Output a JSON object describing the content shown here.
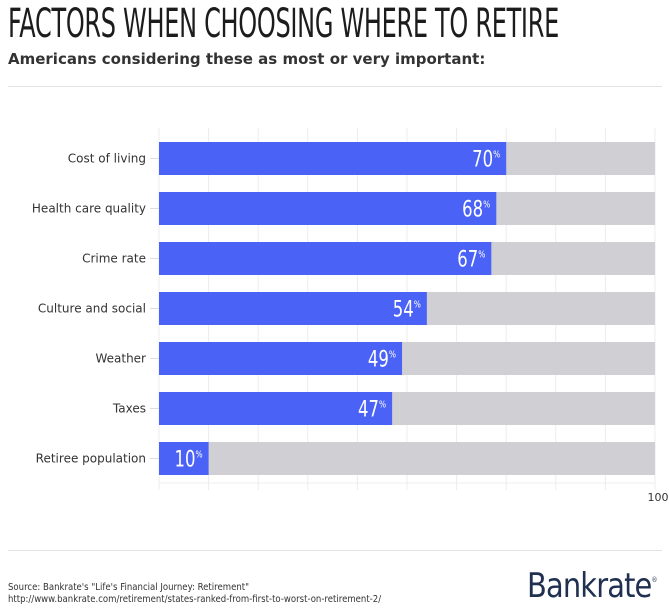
{
  "chart_data": {
    "type": "bar",
    "orientation": "horizontal",
    "stacked_background": true,
    "title": "FACTORS WHEN CHOOSING WHERE TO RETIRE",
    "subtitle": "Americans considering these as most or very important:",
    "categories": [
      "Cost of living",
      "Health care quality",
      "Crime rate",
      "Culture and social",
      "Weather",
      "Taxes",
      "Retiree population"
    ],
    "values": [
      70,
      68,
      67,
      54,
      49,
      47,
      10
    ],
    "value_suffix": "%",
    "xlim": [
      0,
      100
    ],
    "x_tick_labels": [
      "100"
    ],
    "grid": true,
    "colors": {
      "bar": "#4a62f6",
      "background_bar": "#cfcfd4",
      "grid": "#ececec"
    }
  },
  "footer": {
    "source": "Source: Bankrate's \"Life's Financial Journey: Retirement\"",
    "url": "http://www.bankrate.com/retirement/states-ranked-from-first-to-worst-on-retirement-2/",
    "logo": "Bankrate"
  }
}
